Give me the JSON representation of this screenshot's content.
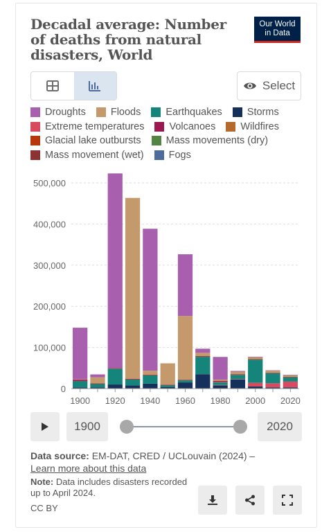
{
  "header": {
    "title": "Decadal average: Number of deaths from natural disasters, World",
    "logo_line1": "Our World",
    "logo_line2": "in Data"
  },
  "tabs": [
    {
      "label": "table-icon",
      "active": false
    },
    {
      "label": "chart-icon",
      "active": true
    }
  ],
  "select_button": {
    "label": "Select",
    "icon": "eye-icon"
  },
  "legend": [
    [
      {
        "name": "Droughts",
        "color": "#a85fae"
      },
      {
        "name": "Floods",
        "color": "#c49a6c"
      },
      {
        "name": "Earthquakes",
        "color": "#15857c"
      },
      {
        "name": "Storms",
        "color": "#16305c"
      }
    ],
    [
      {
        "name": "Extreme temperatures",
        "color": "#d94a5e"
      },
      {
        "name": "Volcanoes",
        "color": "#9b1950"
      },
      {
        "name": "Wildfires",
        "color": "#b46a2a"
      }
    ],
    [
      {
        "name": "Glacial lake outbursts",
        "color": "#b8360c"
      },
      {
        "name": "Mass movements (dry)",
        "color": "#548444"
      }
    ],
    [
      {
        "name": "Mass movement (wet)",
        "color": "#8c3232"
      },
      {
        "name": "Fogs",
        "color": "#4d6b9c"
      }
    ]
  ],
  "chart_data": {
    "type": "bar",
    "stacked": true,
    "title": "Decadal average: Number of deaths from natural disasters, World",
    "categories": [
      1900,
      1910,
      1920,
      1930,
      1940,
      1950,
      1960,
      1970,
      1980,
      1990,
      2000,
      2010,
      2020
    ],
    "ylim": [
      0,
      520000
    ],
    "yticks": [
      0,
      100000,
      200000,
      300000,
      400000,
      500000
    ],
    "ytick_labels": [
      "0",
      "100,000",
      "200,000",
      "300,000",
      "400,000",
      "500,000"
    ],
    "xtick_labels": [
      "1900",
      "1920",
      "1940",
      "1960",
      "1980",
      "2000",
      "2020"
    ],
    "grid": true,
    "series": [
      {
        "name": "Storms",
        "color": "#16305c",
        "values": [
          3000,
          3000,
          10000,
          8000,
          12000,
          4000,
          15000,
          35000,
          8000,
          22000,
          5000,
          3000,
          3000
        ]
      },
      {
        "name": "Extreme temperatures",
        "color": "#d94a5e",
        "values": [
          0,
          0,
          0,
          0,
          0,
          0,
          0,
          0,
          1000,
          1000,
          9000,
          10000,
          14000
        ]
      },
      {
        "name": "Earthquakes",
        "color": "#15857c",
        "values": [
          15000,
          8000,
          38000,
          14000,
          20000,
          4000,
          5000,
          42000,
          6000,
          10000,
          56000,
          24000,
          10000
        ]
      },
      {
        "name": "Mass movements (dry)",
        "color": "#548444",
        "values": [
          500,
          500,
          500,
          500,
          500,
          500,
          500,
          500,
          500,
          500,
          500,
          500,
          500
        ]
      },
      {
        "name": "Mass movement (wet)",
        "color": "#8c3232",
        "values": [
          500,
          500,
          1000,
          500,
          500,
          500,
          500,
          1000,
          1000,
          1000,
          1000,
          1000,
          1000
        ]
      },
      {
        "name": "Volcanoes",
        "color": "#9b1950",
        "values": [
          3000,
          500,
          500,
          500,
          500,
          500,
          500,
          500,
          2500,
          500,
          500,
          500,
          500
        ]
      },
      {
        "name": "Wildfires",
        "color": "#b46a2a",
        "values": [
          0,
          0,
          0,
          0,
          0,
          0,
          0,
          0,
          0,
          0,
          0,
          0,
          0
        ]
      },
      {
        "name": "Floods",
        "color": "#c49a6c",
        "values": [
          1000,
          15000,
          0,
          440000,
          10000,
          52000,
          155000,
          8000,
          3000,
          6000,
          5000,
          5000,
          4000
        ]
      },
      {
        "name": "Droughts",
        "color": "#a85fae",
        "values": [
          125000,
          7000,
          473000,
          0,
          345000,
          0,
          150000,
          10000,
          55000,
          2000,
          500,
          500,
          500
        ]
      },
      {
        "name": "Fogs",
        "color": "#4d6b9c",
        "values": [
          0,
          0,
          0,
          0,
          0,
          0,
          0,
          0,
          0,
          0,
          0,
          0,
          0
        ]
      },
      {
        "name": "Glacial lake outbursts",
        "color": "#b8360c",
        "values": [
          0,
          0,
          0,
          0,
          0,
          0,
          0,
          0,
          0,
          0,
          0,
          0,
          0
        ]
      }
    ]
  },
  "controls": {
    "start_year": "1900",
    "end_year": "2020",
    "range_start": 0,
    "range_end": 1
  },
  "footer": {
    "source_label": "Data source:",
    "source_text": " EM-DAT, CRED / UCLouvain (2024) –",
    "learn_more": "Learn more about this data",
    "note_label": "Note:",
    "note_text": " Data includes disasters recorded up to April 2024.",
    "license": "CC BY"
  }
}
